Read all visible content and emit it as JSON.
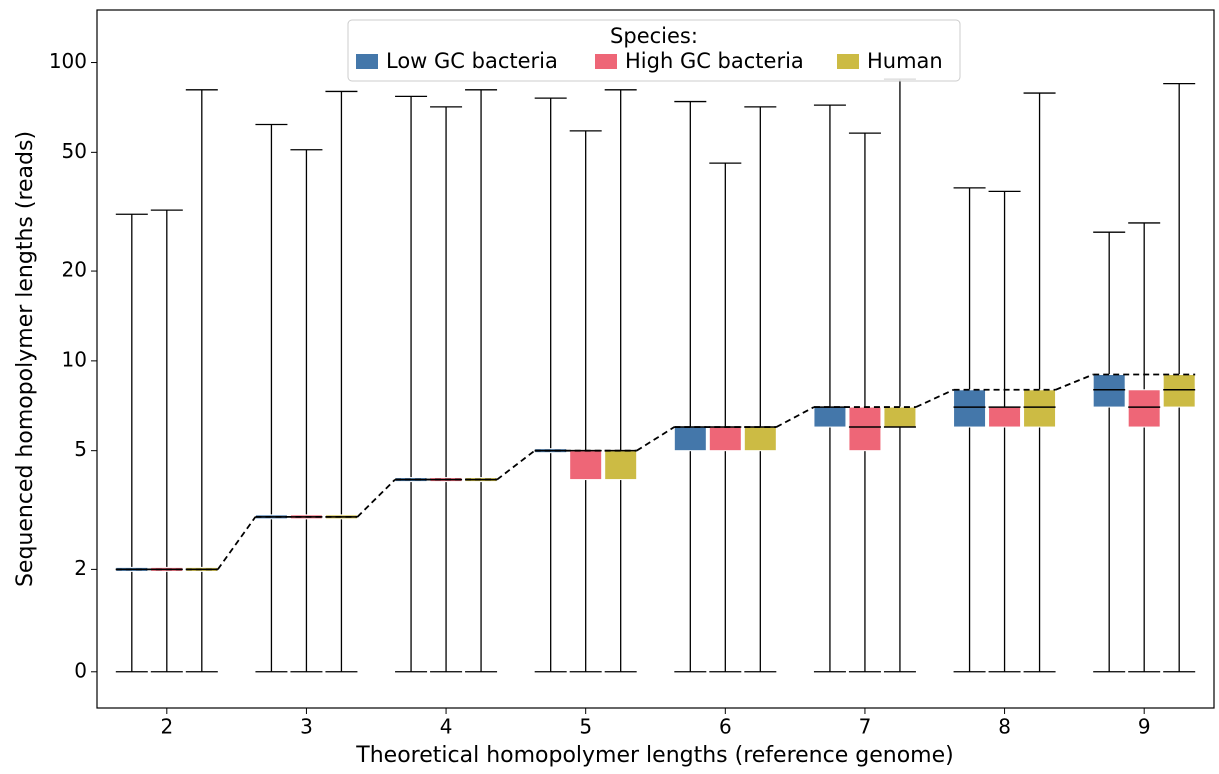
{
  "chart_data": {
    "type": "box",
    "xlabel": "Theoretical homopolymer lengths (reference genome)",
    "ylabel": "Sequenced homopolymer lengths (reads)",
    "yscale": "symlog",
    "categories": [
      "2",
      "3",
      "4",
      "5",
      "6",
      "7",
      "8",
      "9"
    ],
    "ylim": [
      -1.2,
      150
    ],
    "yticks": [
      0,
      2,
      5,
      10,
      20,
      50,
      100
    ],
    "legend_title": "Species:",
    "legend_position": "upper center",
    "series": [
      {
        "name": "Low GC bacteria",
        "color": "#4477aa",
        "whislo": [
          0,
          0,
          0,
          0,
          0,
          0,
          0,
          0
        ],
        "q1": [
          2,
          3,
          4,
          5,
          5,
          6,
          6,
          7
        ],
        "med": [
          2,
          3,
          4,
          5,
          6,
          7,
          7,
          8
        ],
        "q3": [
          2,
          3,
          4,
          5,
          6,
          7,
          8,
          9
        ],
        "whishi": [
          31,
          62,
          77,
          76,
          74,
          72,
          38,
          27
        ]
      },
      {
        "name": "High GC bacteria",
        "color": "#ee6677",
        "whislo": [
          0,
          0,
          0,
          0,
          0,
          0,
          0,
          0
        ],
        "q1": [
          2,
          3,
          4,
          4,
          5,
          5,
          6,
          6
        ],
        "med": [
          2,
          3,
          4,
          5,
          6,
          6,
          7,
          7
        ],
        "q3": [
          2,
          3,
          4,
          5,
          6,
          7,
          7,
          8
        ],
        "whishi": [
          32,
          51,
          71,
          59,
          46,
          58,
          37,
          29
        ]
      },
      {
        "name": "Human",
        "color": "#ccbb44",
        "whislo": [
          0,
          0,
          0,
          0,
          0,
          0,
          0,
          0
        ],
        "q1": [
          2,
          3,
          4,
          4,
          5,
          6,
          6,
          7
        ],
        "med": [
          2,
          3,
          4,
          5,
          6,
          6,
          7,
          8
        ],
        "q3": [
          2,
          3,
          4,
          5,
          6,
          7,
          8,
          9
        ],
        "whishi": [
          81,
          80,
          81,
          81,
          71,
          88,
          79,
          85
        ]
      }
    ],
    "reference_line": {
      "values": [
        2,
        3,
        4,
        5,
        6,
        7,
        8,
        9
      ]
    }
  }
}
